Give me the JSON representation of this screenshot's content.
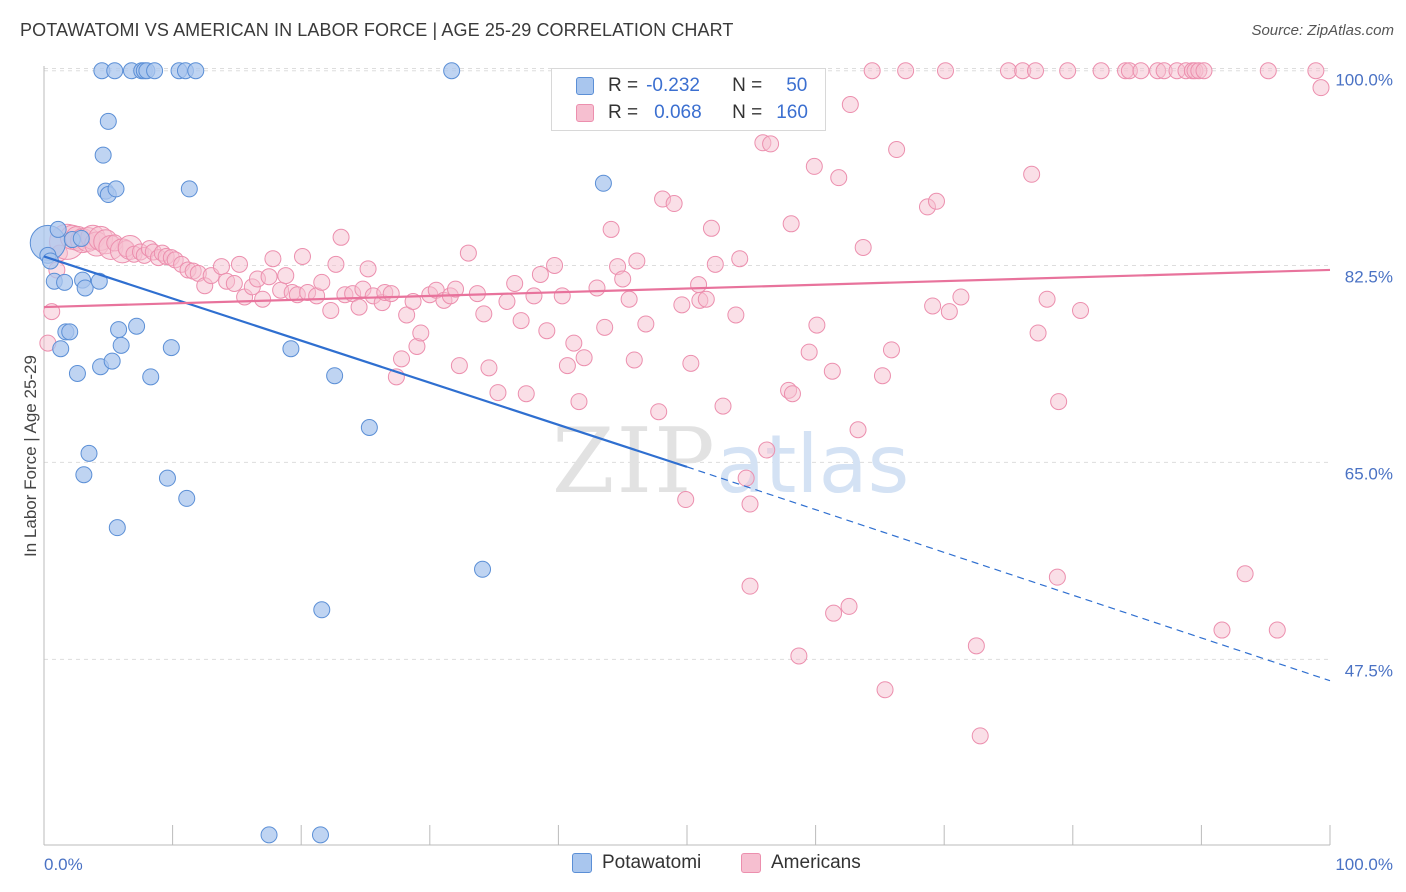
{
  "title": "POTAWATOMI VS AMERICAN IN LABOR FORCE | AGE 25-29 CORRELATION CHART",
  "source": "Source: ZipAtlas.com",
  "watermark": {
    "zip": "ZIP",
    "atlas": "atlas"
  },
  "legend": {
    "rows": [
      {
        "r_label": "R =",
        "r_value": "-0.232",
        "n_label": "N =",
        "n_value": "50"
      },
      {
        "r_label": "R =",
        "r_value": "0.068",
        "n_label": "N =",
        "n_value": "160"
      }
    ]
  },
  "bottom_legend": {
    "potawatomi": "Potawatomi",
    "americans": "Americans"
  },
  "colors": {
    "blue_fill": "#a9c6ee",
    "blue_stroke": "#5b8fd6",
    "blue_line": "#2f6fd0",
    "pink_fill": "#f6bfd0",
    "pink_stroke": "#ec8fae",
    "pink_line": "#e8739c",
    "tick_label": "#4a72c4",
    "grid": "#dddddd"
  },
  "chart_data": {
    "type": "scatter",
    "title": "POTAWATOMI VS AMERICAN IN LABOR FORCE | AGE 25-29 CORRELATION CHART",
    "xlabel": "",
    "ylabel": "In Labor Force | Age 25-29",
    "xlim": [
      0,
      100
    ],
    "ylim": [
      31.0,
      102.0
    ],
    "x_tick_labels": [
      "0.0%",
      "100.0%"
    ],
    "y_ticks": [
      {
        "value": 100.0,
        "label": "100.0%"
      },
      {
        "value": 82.5,
        "label": "82.5%"
      },
      {
        "value": 65.0,
        "label": "65.0%"
      },
      {
        "value": 47.5,
        "label": "47.5%"
      }
    ],
    "grid": true,
    "legend_position": "top-center",
    "series": [
      {
        "name": "Potawatomi",
        "color": "#5b8fd6",
        "trend": {
          "x0": 0,
          "y0": 83.3,
          "x1": 50,
          "y1": 64.6,
          "dashed_to_x": 100,
          "dashed_to_y": 45.6
        },
        "points": [
          [
            0.3,
            84.5,
            2.2
          ],
          [
            0.3,
            83.4,
            1
          ],
          [
            0.5,
            82.9,
            1
          ],
          [
            0.8,
            81.1,
            1
          ],
          [
            1.1,
            85.7,
            1
          ],
          [
            1.3,
            75.1,
            1
          ],
          [
            1.6,
            81.0,
            1
          ],
          [
            1.7,
            76.6,
            1
          ],
          [
            2.0,
            76.6,
            1
          ],
          [
            2.2,
            84.8,
            1
          ],
          [
            2.6,
            72.9,
            1
          ],
          [
            2.9,
            84.9,
            1
          ],
          [
            3.0,
            81.2,
            1
          ],
          [
            3.1,
            63.9,
            1
          ],
          [
            3.2,
            80.5,
            1
          ],
          [
            3.5,
            65.8,
            1
          ],
          [
            4.3,
            81.1,
            1
          ],
          [
            4.4,
            73.5,
            1
          ],
          [
            4.5,
            99.8,
            1
          ],
          [
            4.6,
            92.3,
            1
          ],
          [
            4.8,
            89.1,
            1
          ],
          [
            5.0,
            88.8,
            1
          ],
          [
            5.0,
            95.3,
            1
          ],
          [
            5.3,
            74.0,
            1
          ],
          [
            5.5,
            99.8,
            1
          ],
          [
            5.6,
            89.3,
            1
          ],
          [
            5.7,
            59.2,
            1
          ],
          [
            5.8,
            76.8,
            1
          ],
          [
            6.0,
            75.4,
            1
          ],
          [
            6.8,
            99.8,
            1
          ],
          [
            7.2,
            77.1,
            1
          ],
          [
            7.6,
            99.8,
            1
          ],
          [
            7.8,
            99.8,
            1
          ],
          [
            8.0,
            99.8,
            1
          ],
          [
            8.3,
            72.6,
            1
          ],
          [
            8.6,
            99.8,
            1
          ],
          [
            9.6,
            63.6,
            1
          ],
          [
            9.9,
            75.2,
            1
          ],
          [
            10.5,
            99.8,
            1
          ],
          [
            11.0,
            99.8,
            1
          ],
          [
            11.1,
            61.8,
            1
          ],
          [
            11.3,
            89.3,
            1
          ],
          [
            11.8,
            99.8,
            1
          ],
          [
            17.5,
            31.9,
            1
          ],
          [
            19.2,
            75.1,
            1
          ],
          [
            21.5,
            31.9,
            1
          ],
          [
            21.6,
            51.9,
            1
          ],
          [
            22.6,
            72.7,
            1
          ],
          [
            25.3,
            68.1,
            1
          ],
          [
            31.7,
            99.8,
            1
          ],
          [
            34.1,
            55.5,
            1
          ],
          [
            43.5,
            89.8,
            1
          ]
        ]
      },
      {
        "name": "Americans",
        "color": "#ec8fae",
        "trend": {
          "x0": 0,
          "y0": 78.8,
          "x1": 100,
          "y1": 82.1
        },
        "points": [
          [
            0.3,
            75.6,
            1
          ],
          [
            0.6,
            78.4,
            1
          ],
          [
            1.0,
            82.1,
            1
          ],
          [
            1.2,
            83.6,
            1
          ],
          [
            1.8,
            84.6,
            2.2
          ],
          [
            2.2,
            85.0,
            1.5
          ],
          [
            2.6,
            84.9,
            1.5
          ],
          [
            3.0,
            84.7,
            1.5
          ],
          [
            3.4,
            84.8,
            1.5
          ],
          [
            3.8,
            85.0,
            1.5
          ],
          [
            4.1,
            84.4,
            1.5
          ],
          [
            4.4,
            84.9,
            1.5
          ],
          [
            4.8,
            84.6,
            1.5
          ],
          [
            5.2,
            84.1,
            1.5
          ],
          [
            5.5,
            84.5,
            1
          ],
          [
            6.1,
            83.8,
            1.5
          ],
          [
            6.4,
            84.0,
            1
          ],
          [
            6.7,
            84.1,
            1.5
          ],
          [
            7.0,
            83.5,
            1
          ],
          [
            7.5,
            83.7,
            1
          ],
          [
            7.8,
            83.4,
            1
          ],
          [
            8.2,
            84.0,
            1
          ],
          [
            8.5,
            83.7,
            1
          ],
          [
            8.9,
            83.2,
            1
          ],
          [
            9.2,
            83.6,
            1
          ],
          [
            9.5,
            83.3,
            1
          ],
          [
            9.9,
            83.2,
            1
          ],
          [
            10.2,
            83.0,
            1
          ],
          [
            10.7,
            82.6,
            1
          ],
          [
            11.2,
            82.1,
            1
          ],
          [
            11.6,
            82.0,
            1
          ],
          [
            12.0,
            81.8,
            1
          ],
          [
            12.5,
            80.7,
            1
          ],
          [
            13.0,
            81.6,
            1
          ],
          [
            13.8,
            82.4,
            1
          ],
          [
            14.2,
            81.1,
            1
          ],
          [
            14.8,
            80.9,
            1
          ],
          [
            15.2,
            82.6,
            1
          ],
          [
            15.6,
            79.7,
            1
          ],
          [
            16.2,
            80.6,
            1
          ],
          [
            16.6,
            81.3,
            1
          ],
          [
            17.0,
            79.5,
            1
          ],
          [
            17.5,
            81.5,
            1
          ],
          [
            17.8,
            83.1,
            1
          ],
          [
            18.4,
            80.3,
            1
          ],
          [
            18.8,
            81.6,
            1
          ],
          [
            19.3,
            80.1,
            1
          ],
          [
            19.7,
            79.9,
            1
          ],
          [
            20.1,
            83.3,
            1
          ],
          [
            20.5,
            80.1,
            1
          ],
          [
            21.2,
            79.8,
            1
          ],
          [
            21.6,
            81.0,
            1
          ],
          [
            22.3,
            78.5,
            1
          ],
          [
            22.7,
            82.6,
            1
          ],
          [
            23.1,
            85.0,
            1
          ],
          [
            23.4,
            79.9,
            1
          ],
          [
            24.0,
            80.0,
            1
          ],
          [
            24.5,
            78.8,
            1
          ],
          [
            24.8,
            80.4,
            1
          ],
          [
            25.2,
            82.2,
            1
          ],
          [
            25.6,
            79.8,
            1
          ],
          [
            26.3,
            79.2,
            1
          ],
          [
            26.5,
            80.1,
            1
          ],
          [
            27.0,
            80.0,
            1
          ],
          [
            27.4,
            72.6,
            1
          ],
          [
            27.8,
            74.2,
            1
          ],
          [
            28.2,
            78.1,
            1
          ],
          [
            28.7,
            79.3,
            1
          ],
          [
            29.0,
            75.3,
            1
          ],
          [
            29.3,
            76.5,
            1
          ],
          [
            30.0,
            79.9,
            1
          ],
          [
            30.5,
            80.3,
            1
          ],
          [
            31.1,
            79.4,
            1
          ],
          [
            31.6,
            79.8,
            1
          ],
          [
            32.0,
            80.4,
            1
          ],
          [
            32.3,
            73.6,
            1
          ],
          [
            33.0,
            83.6,
            1
          ],
          [
            33.7,
            80.0,
            1
          ],
          [
            34.2,
            78.2,
            1
          ],
          [
            34.6,
            73.4,
            1
          ],
          [
            35.3,
            71.2,
            1
          ],
          [
            36.0,
            79.3,
            1
          ],
          [
            36.6,
            80.9,
            1
          ],
          [
            37.1,
            77.6,
            1
          ],
          [
            37.5,
            71.1,
            1
          ],
          [
            38.1,
            79.8,
            1
          ],
          [
            38.6,
            81.7,
            1
          ],
          [
            39.1,
            76.7,
            1
          ],
          [
            39.7,
            82.5,
            1
          ],
          [
            40.3,
            79.8,
            1
          ],
          [
            40.7,
            73.6,
            1
          ],
          [
            41.2,
            75.6,
            1
          ],
          [
            41.6,
            70.4,
            1
          ],
          [
            42.0,
            74.3,
            1
          ],
          [
            43.0,
            80.5,
            1
          ],
          [
            43.6,
            77.0,
            1
          ],
          [
            44.1,
            85.7,
            1
          ],
          [
            44.6,
            82.4,
            1
          ],
          [
            45.0,
            81.3,
            1
          ],
          [
            45.5,
            79.5,
            1
          ],
          [
            45.9,
            74.1,
            1
          ],
          [
            46.1,
            82.9,
            1
          ],
          [
            46.8,
            77.3,
            1
          ],
          [
            47.8,
            69.5,
            1
          ],
          [
            48.1,
            88.4,
            1
          ],
          [
            49.0,
            88.0,
            1
          ],
          [
            49.6,
            79.0,
            1
          ],
          [
            49.9,
            61.7,
            1
          ],
          [
            50.3,
            73.8,
            1
          ],
          [
            50.9,
            80.8,
            1
          ],
          [
            51.0,
            79.4,
            1
          ],
          [
            51.5,
            79.5,
            1
          ],
          [
            51.9,
            85.8,
            1
          ],
          [
            52.2,
            82.6,
            1
          ],
          [
            52.8,
            70.0,
            1
          ],
          [
            53.8,
            78.1,
            1
          ],
          [
            54.1,
            83.1,
            1
          ],
          [
            54.9,
            95.5,
            1
          ],
          [
            54.6,
            63.6,
            1
          ],
          [
            54.9,
            61.3,
            1
          ],
          [
            54.9,
            54.0,
            1
          ],
          [
            55.8,
            96.9,
            1
          ],
          [
            55.9,
            93.4,
            1
          ],
          [
            56.2,
            66.1,
            1
          ],
          [
            56.5,
            93.3,
            1
          ],
          [
            57.9,
            71.4,
            1
          ],
          [
            58.1,
            86.2,
            1
          ],
          [
            58.2,
            71.1,
            1
          ],
          [
            58.7,
            47.8,
            1
          ],
          [
            59.5,
            74.8,
            1
          ],
          [
            59.9,
            91.3,
            1
          ],
          [
            60.1,
            77.2,
            1
          ],
          [
            61.3,
            73.1,
            1
          ],
          [
            61.4,
            51.6,
            1
          ],
          [
            61.8,
            90.3,
            1
          ],
          [
            62.6,
            52.2,
            1
          ],
          [
            62.7,
            96.8,
            1
          ],
          [
            63.3,
            67.9,
            1
          ],
          [
            63.7,
            84.1,
            1
          ],
          [
            64.4,
            99.8,
            1
          ],
          [
            65.2,
            72.7,
            1
          ],
          [
            65.4,
            44.8,
            1
          ],
          [
            65.9,
            75.0,
            1
          ],
          [
            66.3,
            92.8,
            1
          ],
          [
            67.0,
            99.8,
            1
          ],
          [
            68.7,
            87.7,
            1
          ],
          [
            69.1,
            78.9,
            1
          ],
          [
            69.4,
            88.2,
            1
          ],
          [
            70.1,
            99.8,
            1
          ],
          [
            70.4,
            78.4,
            1
          ],
          [
            71.3,
            79.7,
            1
          ],
          [
            72.5,
            48.7,
            1
          ],
          [
            72.8,
            40.7,
            1
          ],
          [
            75.0,
            99.8,
            1
          ],
          [
            76.1,
            99.8,
            1
          ],
          [
            76.8,
            90.6,
            1
          ],
          [
            77.1,
            99.8,
            1
          ],
          [
            77.3,
            76.5,
            1
          ],
          [
            78.0,
            79.5,
            1
          ],
          [
            78.8,
            54.8,
            1
          ],
          [
            78.9,
            70.4,
            1
          ],
          [
            79.6,
            99.8,
            1
          ],
          [
            80.6,
            78.5,
            1
          ],
          [
            82.2,
            99.8,
            1
          ],
          [
            84.1,
            99.8,
            1
          ],
          [
            84.4,
            99.8,
            1
          ],
          [
            85.3,
            99.8,
            1
          ],
          [
            86.6,
            99.8,
            1
          ],
          [
            87.1,
            99.8,
            1
          ],
          [
            88.1,
            99.8,
            1
          ],
          [
            88.8,
            99.8,
            1
          ],
          [
            89.3,
            99.8,
            1
          ],
          [
            89.5,
            99.8,
            1
          ],
          [
            89.8,
            99.8,
            1
          ],
          [
            90.2,
            99.8,
            1
          ],
          [
            91.6,
            50.1,
            1
          ],
          [
            93.4,
            55.1,
            1
          ],
          [
            95.2,
            99.8,
            1
          ],
          [
            95.9,
            50.1,
            1
          ],
          [
            98.9,
            99.8,
            1
          ],
          [
            99.3,
            98.3,
            1
          ]
        ]
      }
    ]
  }
}
